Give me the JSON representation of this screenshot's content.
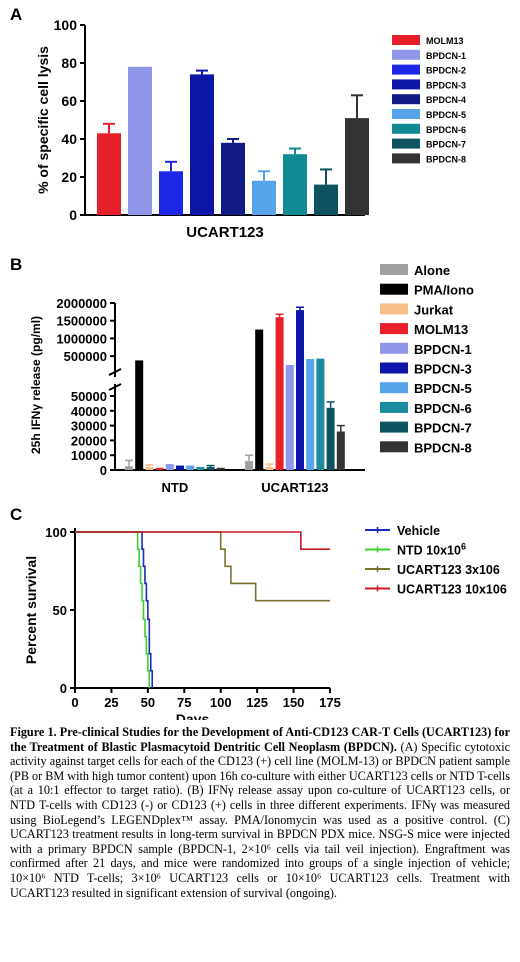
{
  "panels": {
    "a": "A",
    "b": "B",
    "c": "C"
  },
  "chart_data": [
    {
      "type": "bar",
      "ylabel": "% of specific cell lysis",
      "xlabel": "UCART123",
      "ylim": [
        0,
        100
      ],
      "yticks": [
        "0",
        "20",
        "40",
        "60",
        "80",
        "100"
      ],
      "categories": [
        "MOLM13",
        "BPDCN-1",
        "BPDCN-2",
        "BPDCN-3",
        "BPDCN-4",
        "BPDCN-5",
        "BPDCN-6",
        "BPDCN-7",
        "BPDCN-8"
      ],
      "values": [
        43,
        78,
        23,
        74,
        38,
        18,
        32,
        16,
        51
      ],
      "errors": [
        5,
        0,
        5,
        2,
        2,
        5,
        3,
        8,
        12
      ],
      "colors": [
        "#e8202a",
        "#8f96e8",
        "#1c28e6",
        "#0e16a8",
        "#111a85",
        "#58a4ea",
        "#128a93",
        "#0d5460",
        "#333333"
      ]
    },
    {
      "type": "bar",
      "ylabel": "25h IFNγ release (pg/ml)",
      "groups": [
        "NTD",
        "UCART123"
      ],
      "series_names": [
        "Alone",
        "PMA/Iono",
        "Jurkat",
        "MOLM13",
        "BPDCN-1",
        "BPDCN-3",
        "BPDCN-5",
        "BPDCN-6",
        "BPDCN-7",
        "BPDCN-8"
      ],
      "colors": [
        "#a0a0a0",
        "#000000",
        "#f6bf8a",
        "#e8202a",
        "#8f96e8",
        "#0e16a8",
        "#58a4ea",
        "#1b8ca0",
        "#0d5460",
        "#333333"
      ],
      "values": {
        "NTD": [
          2500,
          380000,
          2000,
          1500,
          4000,
          3000,
          3000,
          2000,
          2000,
          1500
        ],
        "UCART123": [
          6000,
          1250000,
          2000,
          1600000,
          120000,
          1800000,
          420000,
          430000,
          42000,
          26000
        ]
      },
      "errors": {
        "NTD": [
          4000,
          0,
          1500,
          0,
          0,
          0,
          0,
          0,
          1000,
          0
        ],
        "UCART123": [
          4000,
          0,
          2000,
          80000,
          0,
          80000,
          0,
          0,
          4000,
          4000
        ]
      },
      "lower_yticks": [
        "0",
        "10000",
        "20000",
        "30000",
        "40000",
        "50000"
      ],
      "upper_yticks": [
        "500000",
        "1000000",
        "1500000",
        "2000000"
      ],
      "lower_ylim": [
        0,
        50000
      ],
      "upper_ylim": [
        250000,
        2000000
      ]
    },
    {
      "type": "line",
      "ylabel": "Percent survival",
      "xlabel": "Days",
      "xlim": [
        0,
        175
      ],
      "ylim": [
        0,
        100
      ],
      "xticks": [
        "0",
        "25",
        "50",
        "75",
        "100",
        "125",
        "150",
        "175"
      ],
      "yticks": [
        "0",
        "50",
        "100"
      ],
      "series": [
        {
          "name": "Vehicle",
          "color": "#1c2ab8",
          "steps": [
            [
              0,
              100
            ],
            [
              46,
              100
            ],
            [
              46,
              89
            ],
            [
              47,
              89
            ],
            [
              47,
              78
            ],
            [
              48,
              78
            ],
            [
              48,
              67
            ],
            [
              49,
              67
            ],
            [
              49,
              56
            ],
            [
              50,
              56
            ],
            [
              50,
              44
            ],
            [
              51,
              44
            ],
            [
              51,
              22
            ],
            [
              52,
              22
            ],
            [
              52,
              11
            ],
            [
              53,
              11
            ],
            [
              53,
              0
            ]
          ]
        },
        {
          "name": "NTD 10x10",
          "name_sup": "6",
          "color": "#3ad12e",
          "steps": [
            [
              0,
              100
            ],
            [
              43,
              100
            ],
            [
              43,
              89
            ],
            [
              44,
              89
            ],
            [
              44,
              78
            ],
            [
              45,
              78
            ],
            [
              45,
              67
            ],
            [
              46,
              67
            ],
            [
              46,
              56
            ],
            [
              47,
              56
            ],
            [
              47,
              44
            ],
            [
              48,
              44
            ],
            [
              48,
              33
            ],
            [
              49,
              33
            ],
            [
              49,
              22
            ],
            [
              50,
              22
            ],
            [
              50,
              11
            ],
            [
              51,
              11
            ],
            [
              51,
              0
            ]
          ]
        },
        {
          "name": "UCART123 3x106",
          "color": "#7c7230",
          "steps": [
            [
              0,
              100
            ],
            [
              100,
              100
            ],
            [
              100,
              89
            ],
            [
              103,
              89
            ],
            [
              103,
              78
            ],
            [
              107,
              78
            ],
            [
              107,
              67
            ],
            [
              124,
              67
            ],
            [
              124,
              56
            ],
            [
              175,
              56
            ]
          ]
        },
        {
          "name": "UCART123 10x106",
          "color": "#c81820",
          "steps": [
            [
              0,
              100
            ],
            [
              155,
              100
            ],
            [
              155,
              89
            ],
            [
              175,
              89
            ]
          ]
        }
      ]
    }
  ],
  "caption": {
    "title": "Figure 1. Pre-clinical Studies for the Development of Anti-CD123 CAR-T Cells (UCART123) for the Treatment of Blastic Plasmacytoid Dentritic Cell Neoplasm (BPDCN).",
    "body": "(A) Specific cytotoxic activity against target cells for each of the CD123 (+) cell line (MOLM-13) or BPDCN patient sample (PB or BM with high tumor content) upon 16h co-culture with either UCART123 cells or NTD T-cells (at a 10:1 effector to target ratio). (B) IFNγ release assay upon co-culture of UCART123 cells, or NTD T-cells with CD123 (-) or CD123 (+) cells in three different experiments. IFNγ was measured using BioLegend’s LEGENDplex™ assay. PMA/Ionomycin was used as a positive control. (C) UCART123 treatment results in long-term survival in BPDCN PDX mice. NSG-S mice were injected with a primary BPDCN sample (BPDCN-1, 2×10⁶ cells via tail veil injection). Engraftment was confirmed after 21 days, and mice were randomized into groups of a single injection of vehicle; 10×10⁶ NTD T-cells; 3×10⁶ UCART123 cells or 10×10⁶ UCART123 cells. Treatment with UCART123 resulted in significant extension of survival (ongoing)."
  }
}
